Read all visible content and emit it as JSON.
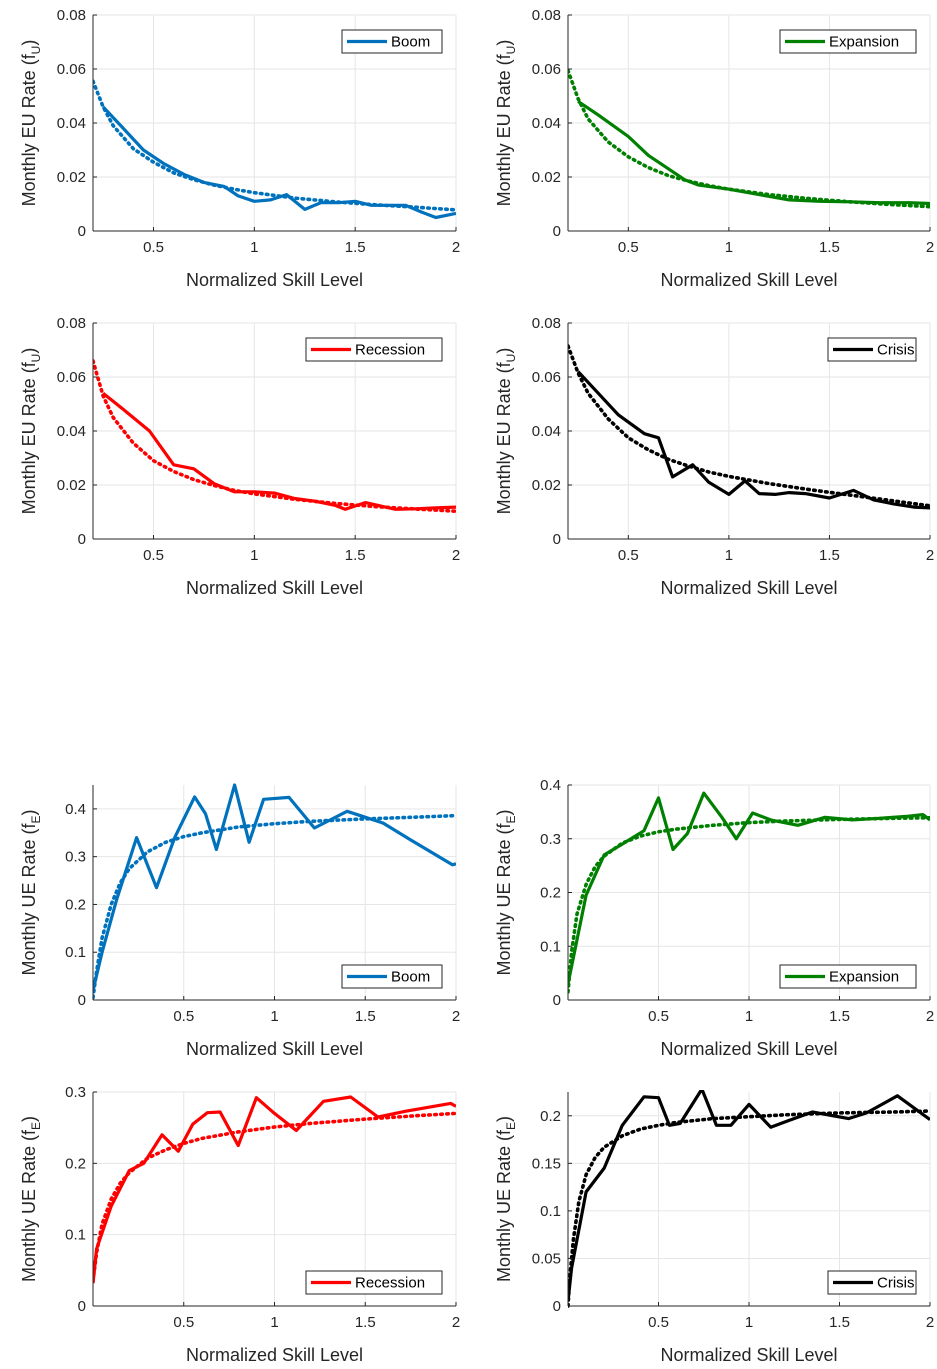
{
  "chart_data": [
    {
      "type": "line",
      "xlabel": "Normalized Skill Level",
      "ylabel": "Monthly EU Rate (f",
      "ylabel_sub": "U",
      "ylabel_tail": ")",
      "xlim": [
        0.2,
        2
      ],
      "ylim": [
        0,
        0.08
      ],
      "xticks": [
        "0.5",
        "1",
        "1.5",
        "2"
      ],
      "xtick_values": [
        0.5,
        1,
        1.5,
        2
      ],
      "yticks": [
        "0",
        "0.02",
        "0.04",
        "0.06",
        "0.08"
      ],
      "ytick_values": [
        0,
        0.02,
        0.04,
        0.06,
        0.08
      ],
      "grid": true,
      "legend_position": "top-right",
      "series": [
        {
          "name": "Boom",
          "color": "#0072BD",
          "style": "solid",
          "x": [
            0.25,
            0.35,
            0.45,
            0.55,
            0.65,
            0.75,
            0.85,
            0.92,
            1.0,
            1.08,
            1.16,
            1.25,
            1.33,
            1.42,
            1.5,
            1.58,
            1.67,
            1.75,
            1.83,
            1.9,
            2.0
          ],
          "y": [
            0.046,
            0.038,
            0.03,
            0.025,
            0.021,
            0.018,
            0.0165,
            0.013,
            0.011,
            0.0115,
            0.0135,
            0.008,
            0.0105,
            0.0105,
            0.011,
            0.0095,
            0.0095,
            0.0095,
            0.007,
            0.005,
            0.0065
          ]
        },
        {
          "name": "",
          "color": "#0072BD",
          "style": "dotted",
          "x": [
            0.2,
            0.25,
            0.3,
            0.4,
            0.5,
            0.6,
            0.7,
            0.8,
            0.9,
            1.0,
            1.2,
            1.4,
            1.6,
            1.8,
            2.0
          ],
          "y": [
            0.0555,
            0.046,
            0.039,
            0.0305,
            0.0255,
            0.0215,
            0.019,
            0.017,
            0.0155,
            0.0142,
            0.0122,
            0.0108,
            0.0097,
            0.0088,
            0.0078
          ]
        }
      ]
    },
    {
      "type": "line",
      "xlabel": "Normalized Skill Level",
      "ylabel": "Monthly EU Rate (f",
      "ylabel_sub": "U",
      "ylabel_tail": ")",
      "xlim": [
        0.2,
        2
      ],
      "ylim": [
        0,
        0.08
      ],
      "xticks": [
        "0.5",
        "1",
        "1.5",
        "2"
      ],
      "xtick_values": [
        0.5,
        1,
        1.5,
        2
      ],
      "yticks": [
        "0",
        "0.02",
        "0.04",
        "0.06",
        "0.08"
      ],
      "ytick_values": [
        0,
        0.02,
        0.04,
        0.06,
        0.08
      ],
      "grid": true,
      "legend_position": "top-right",
      "series": [
        {
          "name": "Expansion",
          "color": "#008000",
          "style": "solid",
          "x": [
            0.25,
            0.35,
            0.5,
            0.6,
            0.7,
            0.78,
            0.85,
            1.0,
            1.15,
            1.3,
            1.45,
            1.6,
            1.75,
            1.9,
            2.0
          ],
          "y": [
            0.048,
            0.043,
            0.035,
            0.028,
            0.023,
            0.019,
            0.017,
            0.0155,
            0.0135,
            0.0115,
            0.011,
            0.0108,
            0.0105,
            0.0105,
            0.0102
          ]
        },
        {
          "name": "",
          "color": "#008000",
          "style": "dotted",
          "x": [
            0.2,
            0.25,
            0.3,
            0.4,
            0.5,
            0.6,
            0.7,
            0.8,
            0.9,
            1.0,
            1.2,
            1.4,
            1.6,
            1.8,
            2.0
          ],
          "y": [
            0.0595,
            0.049,
            0.0415,
            0.033,
            0.0275,
            0.0235,
            0.0205,
            0.0185,
            0.0168,
            0.0155,
            0.0135,
            0.012,
            0.0108,
            0.0098,
            0.009
          ]
        }
      ]
    },
    {
      "type": "line",
      "xlabel": "Normalized Skill Level",
      "ylabel": "Monthly EU Rate (f",
      "ylabel_sub": "U",
      "ylabel_tail": ")",
      "xlim": [
        0.2,
        2
      ],
      "ylim": [
        0,
        0.08
      ],
      "xticks": [
        "0.5",
        "1",
        "1.5",
        "2"
      ],
      "xtick_values": [
        0.5,
        1,
        1.5,
        2
      ],
      "yticks": [
        "0",
        "0.02",
        "0.04",
        "0.06",
        "0.08"
      ],
      "ytick_values": [
        0,
        0.02,
        0.04,
        0.06,
        0.08
      ],
      "grid": true,
      "legend_position": "top-right",
      "series": [
        {
          "name": "Recession",
          "color": "#FF0000",
          "style": "solid",
          "x": [
            0.25,
            0.35,
            0.48,
            0.6,
            0.7,
            0.8,
            0.9,
            1.0,
            1.1,
            1.2,
            1.3,
            1.4,
            1.45,
            1.55,
            1.7,
            1.8,
            1.9,
            2.0
          ],
          "y": [
            0.054,
            0.048,
            0.04,
            0.0275,
            0.026,
            0.0205,
            0.0175,
            0.0175,
            0.017,
            0.015,
            0.014,
            0.0125,
            0.011,
            0.0135,
            0.011,
            0.0112,
            0.0115,
            0.0118
          ]
        },
        {
          "name": "",
          "color": "#FF0000",
          "style": "dotted",
          "x": [
            0.2,
            0.25,
            0.3,
            0.4,
            0.5,
            0.6,
            0.7,
            0.8,
            0.9,
            1.0,
            1.2,
            1.4,
            1.6,
            1.8,
            2.0
          ],
          "y": [
            0.066,
            0.053,
            0.045,
            0.0355,
            0.029,
            0.025,
            0.022,
            0.0198,
            0.018,
            0.0167,
            0.0147,
            0.0132,
            0.012,
            0.0111,
            0.0103
          ]
        }
      ]
    },
    {
      "type": "line",
      "xlabel": "Normalized Skill Level",
      "ylabel": "Monthly EU Rate (f",
      "ylabel_sub": "U",
      "ylabel_tail": ")",
      "xlim": [
        0.2,
        2
      ],
      "ylim": [
        0,
        0.08
      ],
      "xticks": [
        "0.5",
        "1",
        "1.5",
        "2"
      ],
      "xtick_values": [
        0.5,
        1,
        1.5,
        2
      ],
      "yticks": [
        "0",
        "0.02",
        "0.04",
        "0.06",
        "0.08"
      ],
      "ytick_values": [
        0,
        0.02,
        0.04,
        0.06,
        0.08
      ],
      "grid": true,
      "legend_position": "top-right",
      "series": [
        {
          "name": "Crisis",
          "color": "#000000",
          "style": "solid",
          "x": [
            0.25,
            0.35,
            0.45,
            0.58,
            0.65,
            0.72,
            0.82,
            0.9,
            1.0,
            1.08,
            1.15,
            1.23,
            1.3,
            1.38,
            1.5,
            1.62,
            1.72,
            1.82,
            1.92,
            2.0
          ],
          "y": [
            0.062,
            0.054,
            0.046,
            0.039,
            0.0375,
            0.023,
            0.0275,
            0.021,
            0.0165,
            0.0215,
            0.0168,
            0.0165,
            0.0172,
            0.0168,
            0.0152,
            0.018,
            0.0145,
            0.013,
            0.0118,
            0.0115
          ]
        },
        {
          "name": "",
          "color": "#000000",
          "style": "dotted",
          "x": [
            0.2,
            0.25,
            0.3,
            0.4,
            0.5,
            0.6,
            0.7,
            0.8,
            0.9,
            1.0,
            1.2,
            1.4,
            1.6,
            1.8,
            2.0
          ],
          "y": [
            0.0715,
            0.0615,
            0.054,
            0.0445,
            0.0375,
            0.033,
            0.0295,
            0.027,
            0.0248,
            0.0232,
            0.0205,
            0.0183,
            0.0163,
            0.0143,
            0.0123
          ]
        }
      ]
    },
    {
      "type": "line",
      "xlabel": "Normalized Skill Level",
      "ylabel": "Monthly UE Rate (f",
      "ylabel_sub": "E",
      "ylabel_tail": ")",
      "xlim": [
        0,
        2
      ],
      "ylim": [
        0,
        0.45
      ],
      "xticks": [
        "0.5",
        "1",
        "1.5",
        "2"
      ],
      "xtick_values": [
        0.5,
        1,
        1.5,
        2
      ],
      "yticks": [
        "0",
        "0.1",
        "0.2",
        "0.3",
        "0.4"
      ],
      "ytick_values": [
        0,
        0.1,
        0.2,
        0.3,
        0.4
      ],
      "grid": true,
      "legend_position": "bottom-right",
      "series": [
        {
          "name": "Boom",
          "color": "#0072BD",
          "style": "solid",
          "x": [
            0.0,
            0.05,
            0.13,
            0.24,
            0.35,
            0.45,
            0.56,
            0.62,
            0.68,
            0.78,
            0.86,
            0.94,
            1.08,
            1.22,
            1.4,
            1.6,
            1.75,
            1.98,
            2.0
          ],
          "y": [
            0.02,
            0.1,
            0.21,
            0.34,
            0.235,
            0.34,
            0.425,
            0.39,
            0.315,
            0.45,
            0.33,
            0.42,
            0.424,
            0.36,
            0.395,
            0.37,
            0.335,
            0.283,
            0.285
          ]
        },
        {
          "name": "",
          "color": "#0072BD",
          "style": "dotted",
          "x": [
            0.0,
            0.02,
            0.05,
            0.1,
            0.15,
            0.2,
            0.3,
            0.4,
            0.5,
            0.6,
            0.8,
            1.0,
            1.2,
            1.5,
            1.8,
            2.0
          ],
          "y": [
            0.005,
            0.06,
            0.13,
            0.2,
            0.245,
            0.275,
            0.31,
            0.33,
            0.342,
            0.35,
            0.362,
            0.369,
            0.374,
            0.379,
            0.383,
            0.386
          ]
        }
      ]
    },
    {
      "type": "line",
      "xlabel": "Normalized Skill Level",
      "ylabel": "Monthly UE Rate  (f",
      "ylabel_sub": "E",
      "ylabel_tail": ")",
      "xlim": [
        0,
        2
      ],
      "ylim": [
        0,
        0.4
      ],
      "xticks": [
        "0.5",
        "1",
        "1.5",
        "2"
      ],
      "xtick_values": [
        0.5,
        1,
        1.5,
        2
      ],
      "yticks": [
        "0",
        "0.1",
        "0.2",
        "0.3",
        "0.4"
      ],
      "ytick_values": [
        0,
        0.1,
        0.2,
        0.3,
        0.4
      ],
      "grid": true,
      "legend_position": "bottom-right",
      "series": [
        {
          "name": "Expansion",
          "color": "#008000",
          "style": "solid",
          "x": [
            0.0,
            0.1,
            0.2,
            0.3,
            0.42,
            0.5,
            0.58,
            0.66,
            0.75,
            0.85,
            0.93,
            1.02,
            1.12,
            1.27,
            1.42,
            1.57,
            1.72,
            1.88,
            1.96,
            2.0
          ],
          "y": [
            0.03,
            0.195,
            0.27,
            0.29,
            0.315,
            0.376,
            0.28,
            0.31,
            0.385,
            0.34,
            0.3,
            0.348,
            0.335,
            0.325,
            0.34,
            0.335,
            0.338,
            0.342,
            0.345,
            0.335
          ]
        },
        {
          "name": "",
          "color": "#008000",
          "style": "dotted",
          "x": [
            0.0,
            0.02,
            0.05,
            0.1,
            0.15,
            0.2,
            0.3,
            0.4,
            0.5,
            0.6,
            0.8,
            1.0,
            1.2,
            1.5,
            1.8,
            2.0
          ],
          "y": [
            0.015,
            0.09,
            0.16,
            0.215,
            0.248,
            0.268,
            0.292,
            0.305,
            0.313,
            0.318,
            0.325,
            0.33,
            0.333,
            0.336,
            0.338,
            0.339
          ]
        }
      ]
    },
    {
      "type": "line",
      "xlabel": "Normalized Skill Level",
      "ylabel": "Monthly UE Rate (f",
      "ylabel_sub": "E",
      "ylabel_tail": ")",
      "xlim": [
        0,
        2
      ],
      "ylim": [
        0,
        0.3
      ],
      "xticks": [
        "0.5",
        "1",
        "1.5",
        "2"
      ],
      "xtick_values": [
        0.5,
        1,
        1.5,
        2
      ],
      "yticks": [
        "0",
        "0.1",
        "0.2",
        "0.3"
      ],
      "ytick_values": [
        0,
        0.1,
        0.2,
        0.3
      ],
      "grid": true,
      "legend_position": "bottom-right",
      "series": [
        {
          "name": "Recession",
          "color": "#FF0000",
          "style": "solid",
          "x": [
            0.0,
            0.02,
            0.1,
            0.2,
            0.28,
            0.38,
            0.47,
            0.55,
            0.63,
            0.7,
            0.8,
            0.9,
            1.0,
            1.12,
            1.27,
            1.42,
            1.57,
            1.72,
            1.97,
            2.0
          ],
          "y": [
            0.032,
            0.08,
            0.14,
            0.19,
            0.2,
            0.24,
            0.217,
            0.255,
            0.271,
            0.272,
            0.225,
            0.292,
            0.27,
            0.246,
            0.287,
            0.293,
            0.265,
            0.273,
            0.284,
            0.28
          ]
        },
        {
          "name": "",
          "color": "#FF0000",
          "style": "dotted",
          "x": [
            0.0,
            0.02,
            0.05,
            0.1,
            0.15,
            0.2,
            0.3,
            0.4,
            0.5,
            0.6,
            0.8,
            1.0,
            1.2,
            1.5,
            1.8,
            2.0
          ],
          "y": [
            0.035,
            0.075,
            0.115,
            0.15,
            0.172,
            0.187,
            0.207,
            0.219,
            0.228,
            0.235,
            0.244,
            0.251,
            0.256,
            0.262,
            0.267,
            0.27
          ]
        }
      ]
    },
    {
      "type": "line",
      "xlabel": "Normalized Skill Level",
      "ylabel": "Monthly UE Rate (f",
      "ylabel_sub": "E",
      "ylabel_tail": ")",
      "xlim": [
        0,
        2
      ],
      "ylim": [
        0,
        0.225
      ],
      "xticks": [
        "0.5",
        "1",
        "1.5",
        "2"
      ],
      "xtick_values": [
        0.5,
        1,
        1.5,
        2
      ],
      "yticks": [
        "0",
        "0.05",
        "0.1",
        "0.15",
        "0.2"
      ],
      "ytick_values": [
        0,
        0.05,
        0.1,
        0.15,
        0.2
      ],
      "grid": true,
      "legend_position": "bottom-right",
      "series": [
        {
          "name": "Crisis",
          "color": "#000000",
          "style": "solid",
          "x": [
            0.0,
            0.02,
            0.1,
            0.2,
            0.3,
            0.42,
            0.5,
            0.56,
            0.62,
            0.74,
            0.82,
            0.9,
            1.0,
            1.12,
            1.22,
            1.35,
            1.55,
            1.65,
            1.82,
            2.0
          ],
          "y": [
            0.005,
            0.04,
            0.12,
            0.145,
            0.19,
            0.22,
            0.219,
            0.19,
            0.192,
            0.228,
            0.19,
            0.19,
            0.212,
            0.188,
            0.195,
            0.204,
            0.197,
            0.203,
            0.221,
            0.196
          ]
        },
        {
          "name": "",
          "color": "#000000",
          "style": "dotted",
          "x": [
            0.0,
            0.01,
            0.03,
            0.06,
            0.1,
            0.15,
            0.2,
            0.3,
            0.4,
            0.5,
            0.6,
            0.8,
            1.0,
            1.2,
            1.5,
            1.8,
            2.0
          ],
          "y": [
            0.0,
            0.03,
            0.07,
            0.11,
            0.138,
            0.156,
            0.167,
            0.179,
            0.186,
            0.19,
            0.193,
            0.197,
            0.199,
            0.201,
            0.203,
            0.204,
            0.205
          ]
        }
      ]
    }
  ]
}
